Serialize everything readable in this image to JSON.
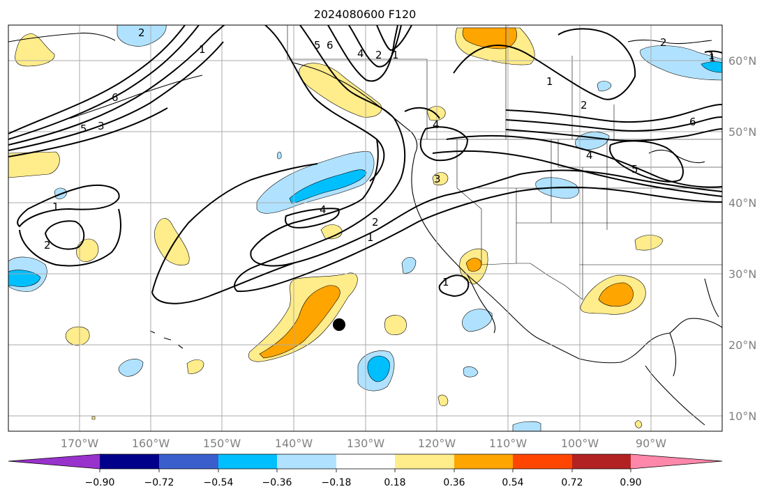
{
  "title": "2024080600 F120",
  "colors": {
    "contour": "#000000",
    "grid": "#aaaaaa",
    "coast": "#000000",
    "border": "#000000",
    "axis_label": "#808080"
  },
  "lat_labels": [
    "60°N",
    "50°N",
    "40°N",
    "30°N",
    "20°N",
    "10°N"
  ],
  "lon_labels": [
    "170°W",
    "160°W",
    "150°W",
    "140°W",
    "130°W",
    "120°W",
    "110°W",
    "100°W",
    "90°W"
  ],
  "colorbar": {
    "colors": [
      "#9932cc",
      "#00008b",
      "#3a5fcd",
      "#00bfff",
      "#b0e2ff",
      "#ffffff",
      "#ffec8b",
      "#ffa500",
      "#ff4500",
      "#b22222",
      "#ff88aa"
    ],
    "tick_labels": [
      "−0.90",
      "−0.72",
      "−0.54",
      "−0.36",
      "−0.18",
      "0.18",
      "0.36",
      "0.54",
      "0.72",
      "0.90"
    ]
  },
  "contour_labels": [
    {
      "text": "1"
    },
    {
      "text": "3"
    },
    {
      "text": "5"
    },
    {
      "text": "6"
    },
    {
      "text": "2"
    },
    {
      "text": "6"
    },
    {
      "text": "5"
    },
    {
      "text": "4"
    },
    {
      "text": "2"
    },
    {
      "text": "1"
    },
    {
      "text": "1"
    },
    {
      "text": "2"
    },
    {
      "text": "4"
    },
    {
      "text": "6"
    },
    {
      "text": "2"
    },
    {
      "text": "1"
    },
    {
      "text": "4"
    },
    {
      "text": "5"
    },
    {
      "text": "3"
    },
    {
      "text": "4"
    },
    {
      "text": "2"
    },
    {
      "text": "1"
    },
    {
      "text": "1"
    },
    {
      "text": "2"
    },
    {
      "text": "1"
    },
    {
      "text": "1"
    }
  ]
}
